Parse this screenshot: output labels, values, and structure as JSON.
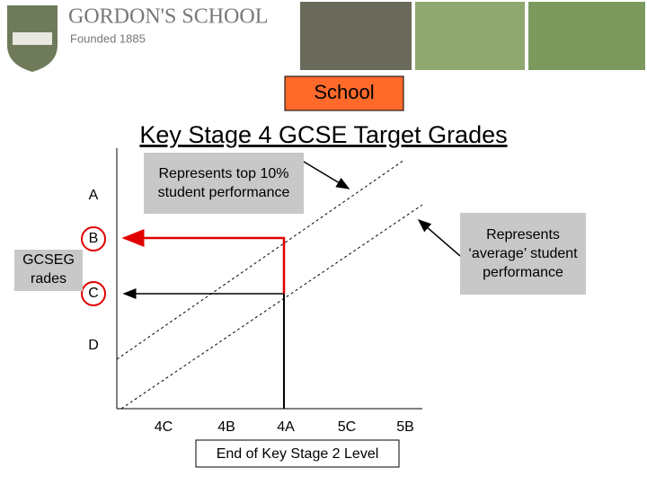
{
  "header": {
    "school_name": "GORDON'S SCHOOL",
    "founded": "Founded 1885"
  },
  "banner": "School",
  "title": "Key Stage 4 GCSE Target Grades",
  "callouts": [
    "Represents top 10% student performance",
    "Represents ‘average’ student performance"
  ],
  "y_axis": {
    "label_lines": [
      "GCSEG",
      "rades"
    ],
    "grades": [
      "A",
      "B",
      "C",
      "D"
    ]
  },
  "x_axis": {
    "label": "End of Key Stage 2 Level",
    "levels": [
      "4C",
      "4B",
      "4A",
      "5C",
      "5B"
    ]
  }
}
